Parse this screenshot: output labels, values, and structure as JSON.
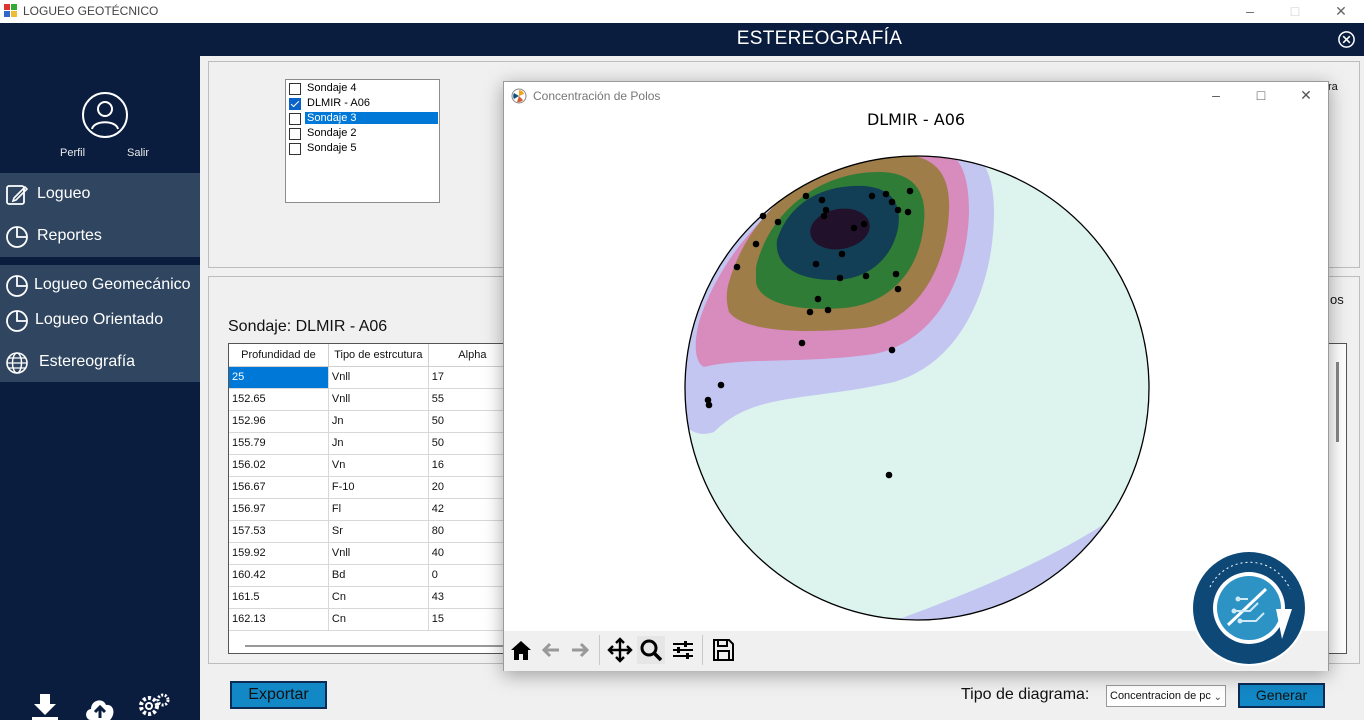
{
  "window": {
    "title": "LOGUEO GEOTÉCNICO"
  },
  "header": {
    "title": "ESTEREOGRAFÍA"
  },
  "sidebar": {
    "profile_label": "Perfil",
    "logout_label": "Salir",
    "items": [
      {
        "label": "Logueo"
      },
      {
        "label": "Reportes"
      },
      {
        "label": "Logueo Geomecánico"
      },
      {
        "label": "Logueo Orientado"
      },
      {
        "label": "Estereografía"
      }
    ]
  },
  "sondajes": [
    {
      "label": "Sondaje 4",
      "checked": false,
      "selected": false
    },
    {
      "label": "DLMIR - A06",
      "checked": true,
      "selected": false
    },
    {
      "label": "Sondaje 3",
      "checked": false,
      "selected": true
    },
    {
      "label": "Sondaje 2",
      "checked": false,
      "selected": false
    },
    {
      "label": "Sondaje 5",
      "checked": false,
      "selected": false
    }
  ],
  "table": {
    "title": "Sondaje: DLMIR - A06",
    "columns": [
      "Profundidad de",
      "Tipo de estrcutura",
      "Alpha"
    ],
    "rows": [
      [
        "25",
        "Vnll",
        "17"
      ],
      [
        "152.65",
        "Vnll",
        "55"
      ],
      [
        "152.96",
        "Jn",
        "50"
      ],
      [
        "155.79",
        "Jn",
        "50"
      ],
      [
        "156.02",
        "Vn",
        "16"
      ],
      [
        "156.67",
        "F-10",
        "20"
      ],
      [
        "156.97",
        "Fl",
        "42"
      ],
      [
        "157.53",
        "Sr",
        "80"
      ],
      [
        "159.92",
        "Vnll",
        "40"
      ],
      [
        "160.42",
        "Bd",
        "0"
      ],
      [
        "161.5",
        "Cn",
        "43"
      ],
      [
        "162.13",
        "Cn",
        "15"
      ]
    ]
  },
  "partial_labels": {
    "right_top": "ra",
    "right_mid": "os"
  },
  "controls": {
    "export_label": "Exportar",
    "diagram_type_label": "Tipo de diagrama:",
    "diagram_type_value": "Concentracion de pc",
    "generate_label": "Generar"
  },
  "popup": {
    "title": "Concentración de Polos",
    "plot_title": "DLMIR - A06"
  },
  "colors": {
    "navy": "#0b1d3f",
    "sidebar_highlight": "#2f4560",
    "accent_button": "#1288c6",
    "selection": "#0078d7"
  }
}
